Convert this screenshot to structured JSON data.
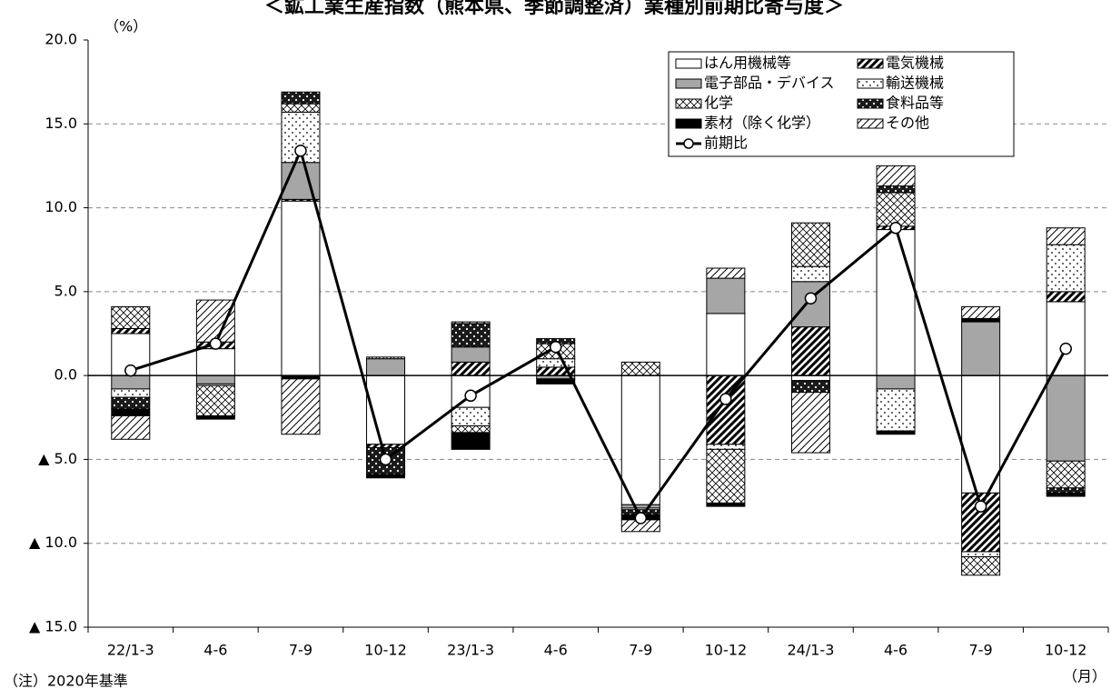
{
  "chart_data": {
    "type": "stacked-bar-line",
    "title": "＜鉱工業生産指数（熊本県、季節調整済）業種別前期比寄与度＞",
    "unit_label": "（%）",
    "note": "（注）2020年基準",
    "x_unit_label": "（月）",
    "categories": [
      "22/1-3",
      "4-6",
      "7-9",
      "10-12",
      "23/1-3",
      "4-6",
      "7-9",
      "10-12",
      "24/1-3",
      "4-6",
      "7-9",
      "10-12"
    ],
    "ylim": [
      -15,
      20
    ],
    "yticks": [
      {
        "value": -15,
        "label": "▲ 15.0"
      },
      {
        "value": -10,
        "label": "▲ 10.0"
      },
      {
        "value": -5,
        "label": "▲ 5.0"
      },
      {
        "value": 0,
        "label": "0.0"
      },
      {
        "value": 5,
        "label": "5.0"
      },
      {
        "value": 10,
        "label": "10.0"
      },
      {
        "value": 15,
        "label": "15.0"
      },
      {
        "value": 20,
        "label": "20.0"
      }
    ],
    "grid": true,
    "legend": "top-right",
    "series": [
      {
        "name": "はん用機械等",
        "color": "#ffffff",
        "values": [
          2.5,
          1.6,
          10.4,
          -4.1,
          -1.9,
          0,
          -7.7,
          3.7,
          -0.3,
          8.7,
          -7.0,
          4.4
        ]
      },
      {
        "name": "電気機械",
        "color": "#ffffff",
        "values": [
          0.3,
          0.4,
          0.1,
          -0.2,
          0.8,
          0.5,
          0,
          -4.1,
          2.9,
          0.2,
          -3.5,
          0.6
        ]
      },
      {
        "name": "電子部品・デバイス",
        "color": "#a6a6a6",
        "values": [
          -0.8,
          -0.5,
          2.2,
          1.0,
          0.9,
          -0.2,
          -0.2,
          2.1,
          2.7,
          -0.8,
          3.2,
          -5.1
        ]
      },
      {
        "name": "輸送機械",
        "color": "#ffffff",
        "values": [
          -0.5,
          -0.1,
          3.0,
          0,
          -1.1,
          0.5,
          -0.1,
          -0.3,
          0.9,
          -2.5,
          -0.3,
          2.8
        ]
      },
      {
        "name": "化学",
        "color": "#ffffff",
        "values": [
          1.3,
          -1.8,
          0.5,
          0.1,
          -0.4,
          0.9,
          0.8,
          -3.2,
          2.6,
          2.0,
          -1.1,
          -1.6
        ]
      },
      {
        "name": "食料品等",
        "color": "#1a1a1a",
        "values": [
          -0.7,
          0,
          0.7,
          -1.6,
          1.4,
          0.3,
          -0.3,
          0,
          -0.7,
          0.4,
          0,
          -0.3
        ]
      },
      {
        "name": "素材（除く化学）",
        "color": "#000000",
        "values": [
          -0.4,
          -0.2,
          -0.2,
          -0.2,
          -1.0,
          -0.3,
          -0.3,
          -0.2,
          0,
          -0.2,
          0.2,
          -0.2
        ]
      },
      {
        "name": "その他",
        "color": "#ffffff",
        "values": [
          -1.4,
          2.5,
          -3.3,
          0,
          0.1,
          0,
          -0.7,
          0.6,
          -3.6,
          1.2,
          0.7,
          1.0
        ]
      }
    ],
    "line": {
      "name": "前期比",
      "color": "#000000",
      "values": [
        0.3,
        1.9,
        13.4,
        -5.0,
        -1.2,
        1.7,
        -8.5,
        -1.4,
        4.6,
        8.8,
        -7.8,
        1.6
      ]
    }
  }
}
